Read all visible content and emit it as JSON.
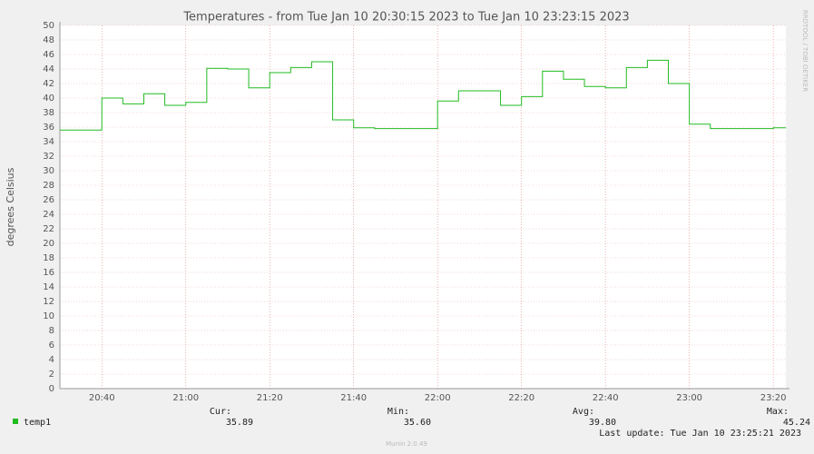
{
  "chart_data": {
    "type": "line",
    "step": true,
    "title": "Temperatures - from Tue Jan 10 20:30:15 2023 to Tue Jan 10 23:23:15 2023",
    "y_label": "degrees Celsius",
    "side_text": "RRDTOOL / TOBI OETIKER",
    "x": [
      "20:30",
      "20:40",
      "20:45",
      "20:50",
      "20:55",
      "21:00",
      "21:05",
      "21:10",
      "21:15",
      "21:20",
      "21:25",
      "21:30",
      "21:35",
      "21:40",
      "21:45",
      "22:00",
      "22:05",
      "22:15",
      "22:20",
      "22:25",
      "22:30",
      "22:35",
      "22:40",
      "22:45",
      "22:50",
      "22:55",
      "23:00",
      "23:05",
      "23:20"
    ],
    "series": [
      {
        "name": "temp1",
        "color": "#22bb22",
        "values": [
          35.6,
          40.0,
          39.2,
          40.6,
          39.0,
          39.4,
          44.1,
          44.0,
          41.4,
          43.5,
          44.2,
          45.0,
          37.0,
          35.9,
          35.8,
          39.6,
          41.0,
          39.0,
          40.2,
          43.7,
          42.6,
          41.6,
          41.4,
          44.2,
          45.2,
          42.0,
          36.4,
          35.8,
          35.9
        ]
      }
    ],
    "xlim": [
      "20:30",
      "23:23"
    ],
    "xticks": [
      "20:40",
      "21:00",
      "21:20",
      "21:40",
      "22:00",
      "22:20",
      "22:40",
      "23:00",
      "23:20"
    ],
    "ylim": [
      0,
      50
    ],
    "yticks": [
      0,
      2,
      4,
      6,
      8,
      10,
      12,
      14,
      16,
      18,
      20,
      22,
      24,
      26,
      28,
      30,
      32,
      34,
      36,
      38,
      40,
      42,
      44,
      46,
      48,
      50
    ],
    "grid": true,
    "stats": {
      "labels": [
        "Cur:",
        "Min:",
        "Avg:",
        "Max:"
      ],
      "values": [
        "35.89",
        "35.60",
        "39.80",
        "45.24"
      ]
    },
    "last_update": "Last update: Tue Jan 10 23:25:21 2023",
    "footer": "Munin 2.0.49"
  }
}
